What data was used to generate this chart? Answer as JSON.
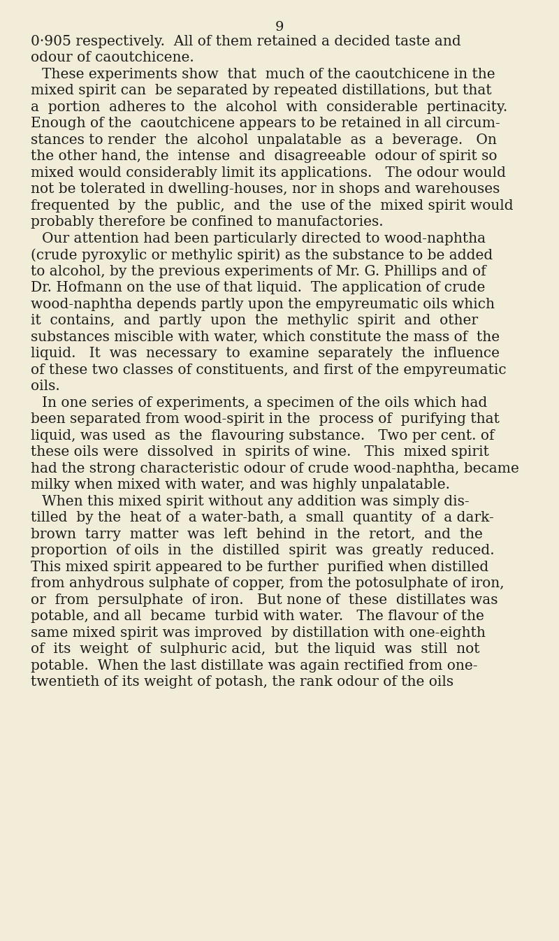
{
  "background_color": "#f2edd8",
  "page_number": "9",
  "text_color": "#1c1c1c",
  "font_family": "DejaVu Serif",
  "fontsize": 14.5,
  "page_number_fontsize": 14,
  "paragraphs": [
    {
      "indent": false,
      "lines": [
        "0·905 respectively.  All of them retained a decided taste and",
        "odour of caoutchicene."
      ]
    },
    {
      "indent": true,
      "lines": [
        "These experiments show  that  much of the caoutchicene in the",
        "mixed spirit can  be separated by repeated distillations, but that",
        "a  portion  adheres to  the  alcohol  with  considerable  pertinacity.",
        "Enough of the  caoutchicene appears to be retained in all circum-",
        "stances to render  the  alcohol  unpalatable  as  a  beverage.   On",
        "the other hand, the  intense  and  disagreeable  odour of spirit so",
        "mixed would considerably limit its applications.   The odour would",
        "not be tolerated in dwelling-houses, nor in shops and warehouses",
        "frequented  by  the  public,  and  the  use of the  mixed spirit would",
        "probably therefore be confined to manufactories."
      ]
    },
    {
      "indent": true,
      "lines": [
        "Our attention had been particularly directed to wood-naphtha",
        "(crude pyroxylic or methylic spirit) as the substance to be added",
        "to alcohol, by the previous experiments of Mr. G. Phillips and of",
        "Dr. Hofmann on the use of that liquid.  The application of crude",
        "wood-naphtha depends partly upon the empyreumatic oils which",
        "it  contains,  and  partly  upon  the  methylic  spirit  and  other",
        "substances miscible with water, which constitute the mass of  the",
        "liquid.   It  was  necessary  to  examine  separately  the  influence",
        "of these two classes of constituents, and first of the empyreumatic",
        "oils."
      ]
    },
    {
      "indent": true,
      "lines": [
        "In one series of experiments, a specimen of the oils which had",
        "been separated from wood-spirit in the  process of  purifying that",
        "liquid, was used  as  the  flavouring substance.   Two per cent. of",
        "these oils were  dissolved  in  spirits of wine.   This  mixed spirit",
        "had the strong characteristic odour of crude wood-naphtha, became",
        "milky when mixed with water, and was highly unpalatable."
      ]
    },
    {
      "indent": true,
      "lines": [
        "When this mixed spirit without any addition was simply dis-",
        "tilled  by the  heat of  a water-bath, a  small  quantity  of  a dark-",
        "brown  tarry  matter  was  left  behind  in  the  retort,  and  the",
        "proportion  of oils  in  the  distilled  spirit  was  greatly  reduced.",
        "This mixed spirit appeared to be further  purified when distilled",
        "from anhydrous sulphate of copper, from the potosulphate of iron,",
        "or  from  persulphate  of iron.   But none of  these  distillates was",
        "potable, and all  became  turbid with water.   The flavour of the",
        "same mixed spirit was improved  by distillation with one-eighth",
        "of  its  weight  of  sulphuric acid,  but  the liquid  was  still  not",
        "potable.  When the last distillate was again rectified from one-",
        "twentieth of its weight of potash, the rank odour of the oils"
      ]
    }
  ]
}
